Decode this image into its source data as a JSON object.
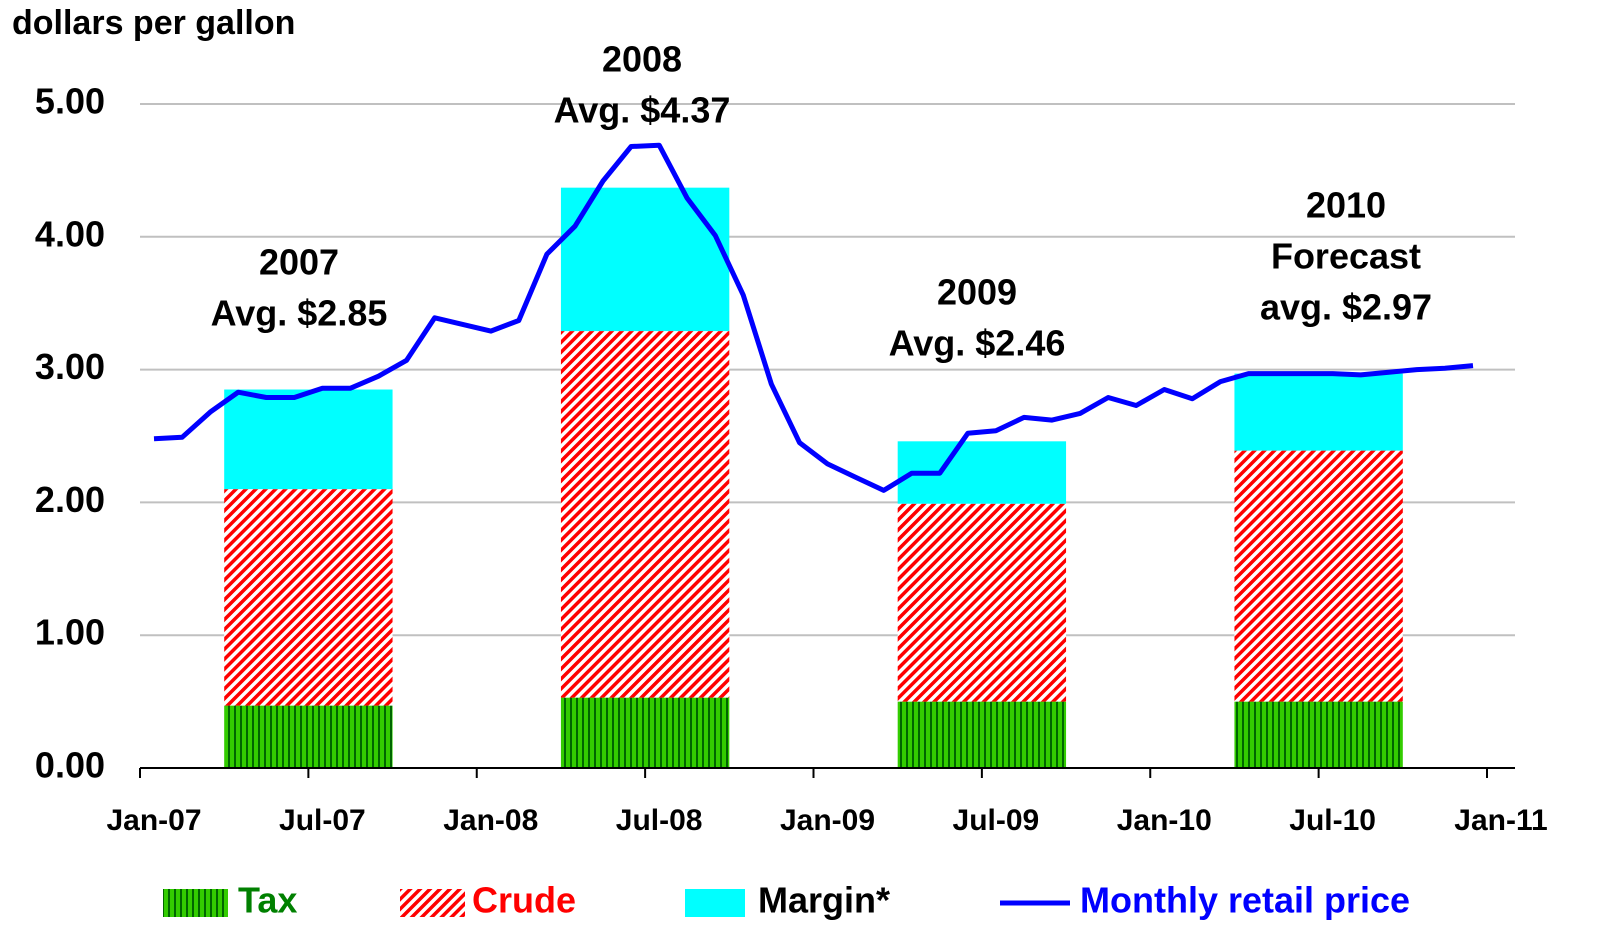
{
  "chart_data": {
    "type": "combo",
    "y_axis_label": "dollars per gallon",
    "xlim": [
      "Jan-07",
      "Jan-11"
    ],
    "xticks": [
      "Jan-07",
      "Jul-07",
      "Jan-08",
      "Jul-08",
      "Jan-09",
      "Jul-09",
      "Jan-10",
      "Jul-10",
      "Jan-11"
    ],
    "ylim": [
      0,
      5
    ],
    "yticks": [
      {
        "value": 0,
        "label": "0.00"
      },
      {
        "value": 1,
        "label": "1.00"
      },
      {
        "value": 2,
        "label": "2.00"
      },
      {
        "value": 3,
        "label": "3.00"
      },
      {
        "value": 4,
        "label": "4.00"
      },
      {
        "value": 5,
        "label": "5.00"
      }
    ],
    "grid": true,
    "legend": "bottom",
    "bars": {
      "x": [
        "Jul-07",
        "Jul-08",
        "Jul-09",
        "Jul-10"
      ],
      "series": [
        {
          "name": "Tax",
          "color": "#33cc00",
          "values": [
            0.47,
            0.53,
            0.5,
            0.5
          ]
        },
        {
          "name": "Crude",
          "color": "#ff0000",
          "values": [
            1.63,
            2.76,
            1.49,
            1.89
          ]
        },
        {
          "name": "Margin*",
          "color": "#00ffff",
          "values": [
            0.75,
            1.08,
            0.47,
            0.58
          ]
        }
      ]
    },
    "line": {
      "name": "Monthly retail price",
      "color": "#0000ff",
      "x": [
        "Jan-07",
        "Feb-07",
        "Mar-07",
        "Apr-07",
        "May-07",
        "Jun-07",
        "Jul-07",
        "Aug-07",
        "Sep-07",
        "Oct-07",
        "Nov-07",
        "Dec-07",
        "Jan-08",
        "Feb-08",
        "Mar-08",
        "Apr-08",
        "May-08",
        "Jun-08",
        "Jul-08",
        "Aug-08",
        "Sep-08",
        "Oct-08",
        "Nov-08",
        "Dec-08",
        "Jan-09",
        "Feb-09",
        "Mar-09",
        "Apr-09",
        "May-09",
        "Jun-09",
        "Jul-09",
        "Aug-09",
        "Sep-09",
        "Oct-09",
        "Nov-09",
        "Dec-09",
        "Jan-10",
        "Feb-10",
        "Mar-10",
        "Apr-10",
        "May-10",
        "Jun-10",
        "Jul-10",
        "Aug-10",
        "Sep-10",
        "Oct-10",
        "Nov-10",
        "Dec-10"
      ],
      "values": [
        2.48,
        2.49,
        2.68,
        2.83,
        2.79,
        2.79,
        2.86,
        2.86,
        2.95,
        3.07,
        3.39,
        3.34,
        3.29,
        3.37,
        3.87,
        4.08,
        4.42,
        4.68,
        4.69,
        4.29,
        4.01,
        3.56,
        2.89,
        2.45,
        2.29,
        2.19,
        2.09,
        2.22,
        2.22,
        2.52,
        2.54,
        2.64,
        2.62,
        2.67,
        2.79,
        2.73,
        2.85,
        2.78,
        2.91,
        2.97,
        2.97,
        2.97,
        2.97,
        2.96,
        2.98,
        3.0,
        3.01,
        3.03
      ]
    },
    "annotations": [
      [
        "2007",
        "Avg. $2.85"
      ],
      [
        "2008",
        "Avg. $4.37"
      ],
      [
        "2009",
        "Avg. $2.46"
      ],
      [
        "2010",
        "Forecast",
        "avg. $2.97"
      ]
    ]
  }
}
